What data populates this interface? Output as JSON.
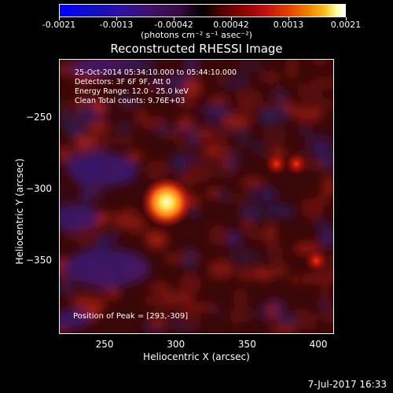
{
  "chart_data": {
    "type": "heatmap",
    "title": "Reconstructed RHESSI Image",
    "xlabel": "Heliocentric X (arcsec)",
    "ylabel": "Heliocentric Y (arcsec)",
    "xlim": [
      218,
      411
    ],
    "ylim": [
      -402,
      -209
    ],
    "x_ticks": [
      250,
      300,
      350,
      400
    ],
    "y_ticks": [
      -250,
      -300,
      -350
    ],
    "colorbar": {
      "ticks": [
        "-0.0021",
        "-0.0013",
        "-0.00042",
        "0.00042",
        "0.0013",
        "0.0021"
      ],
      "unit_label": "(photons cm⁻² s⁻¹ asec⁻²)",
      "range": [
        -0.0021,
        0.0021
      ]
    },
    "peak_position": [
      293,
      -309
    ],
    "info_lines": [
      "25-Oct-2014 05:34:10.000 to 05:44:10.000",
      "Detectors: 3F 6F 9F, Att 0",
      "Energy Range: 12.0 - 25.0 keV",
      "Clean     Total counts: 9.76E+03"
    ],
    "peak_label": "Position of Peak = [293,-309]",
    "sources": [
      {
        "x": 293,
        "y": -309,
        "intensity": 1.0
      },
      {
        "x": 370,
        "y": -282,
        "intensity": 0.35
      },
      {
        "x": 384,
        "y": -282,
        "intensity": 0.33
      },
      {
        "x": 398,
        "y": -350,
        "intensity": 0.3
      }
    ]
  },
  "footer": {
    "date": "7-Jul-2017 16:33"
  }
}
